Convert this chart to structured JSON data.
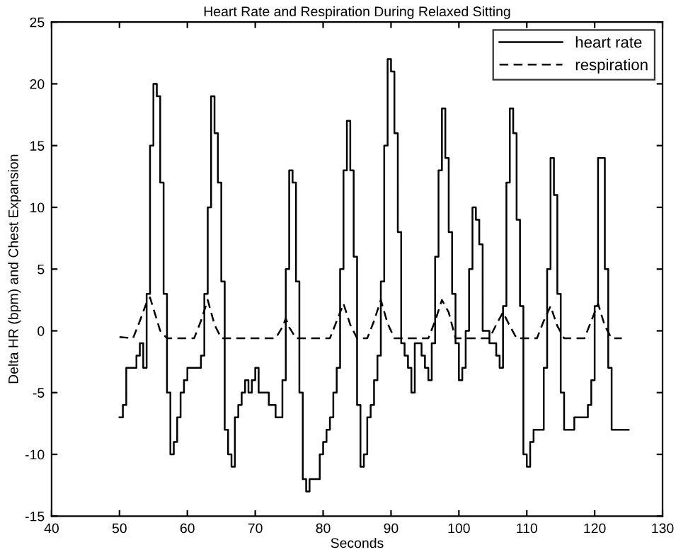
{
  "chart_data": {
    "type": "line",
    "title": "Heart Rate and Respiration During Relaxed Sitting",
    "xlabel": "Seconds",
    "ylabel": "Delta HR (bpm) and Chest Expansion",
    "xlim": [
      40,
      130
    ],
    "xticks": [
      40,
      50,
      60,
      70,
      80,
      90,
      100,
      110,
      120,
      130
    ],
    "ylim": [
      -15,
      25
    ],
    "yticks": [
      -15,
      -10,
      -5,
      0,
      5,
      10,
      15,
      20,
      25
    ],
    "grid": false,
    "legend": "top right",
    "series": [
      {
        "name": "heart rate",
        "type": "step",
        "color": "#000000",
        "line_style": "solid",
        "x": [
          50,
          50.5,
          51,
          52,
          52.5,
          53,
          53.5,
          54,
          54.5,
          55,
          55.5,
          56,
          56.5,
          57,
          57.5,
          58,
          58.5,
          59,
          59.5,
          60,
          61,
          62,
          62.5,
          63,
          63.5,
          64,
          64.5,
          65,
          65.5,
          66,
          66.5,
          67,
          67.5,
          68,
          68.5,
          69,
          69.5,
          70,
          70.5,
          71,
          72,
          73,
          74,
          74.5,
          75,
          75.5,
          76,
          76.5,
          77,
          77.5,
          78,
          79,
          79.5,
          80,
          80.5,
          81,
          81.5,
          82,
          82.5,
          83,
          83.5,
          84,
          84.5,
          85,
          85.5,
          86,
          86.5,
          87,
          87.5,
          88,
          88.5,
          89,
          89.5,
          90,
          90.5,
          91,
          91.5,
          92,
          92.5,
          93,
          93.5,
          94,
          94.5,
          95,
          95.5,
          96,
          96.5,
          97,
          97.5,
          98,
          98.5,
          99,
          99.5,
          100,
          100.5,
          101,
          101.5,
          102,
          102.5,
          103,
          103.5,
          104,
          104.5,
          105,
          105.5,
          106,
          106.5,
          107,
          107.5,
          108,
          108.5,
          109,
          109.5,
          110,
          110.5,
          111,
          112,
          112.5,
          113,
          113.5,
          114,
          114.5,
          115,
          115.5,
          116,
          117,
          118,
          119,
          119.5,
          120,
          120.5,
          121,
          121.5,
          122,
          122.5,
          123,
          125
        ],
        "values": [
          -7,
          -6,
          -3,
          -3,
          -2,
          -1,
          -3,
          3,
          15,
          20,
          19,
          12,
          3,
          -5,
          -10,
          -9,
          -7,
          -5,
          -4,
          -3,
          -3,
          -2,
          3,
          10,
          19,
          16,
          12,
          4,
          -8,
          -10,
          -11,
          -7,
          -6,
          -5,
          -4,
          -5,
          -4,
          -3,
          -5,
          -5,
          -6,
          -7,
          -4,
          5,
          13,
          12,
          4,
          -5,
          -12,
          -13,
          -12,
          -12,
          -10,
          -9,
          -8,
          -7,
          -5,
          -3,
          5,
          13,
          17,
          13,
          6,
          -6,
          -11,
          -10,
          -7,
          -6,
          -4,
          -2,
          4,
          15,
          22,
          21,
          16,
          8,
          -1,
          -2,
          -3,
          -5,
          -1,
          -1,
          -2,
          -3,
          -4,
          -1,
          6,
          13,
          18,
          14,
          8,
          3,
          -1,
          -4,
          -3,
          0,
          5,
          10,
          9,
          7,
          0,
          0,
          -1,
          -1,
          -2,
          -3,
          2,
          12,
          18,
          16,
          9,
          2,
          -10,
          -11,
          -9,
          -8,
          -8,
          -3,
          5,
          14,
          11,
          3,
          -5,
          -8,
          -8,
          -7,
          -7,
          -6,
          -4,
          2,
          14,
          14,
          5,
          -3,
          -8,
          -8,
          -8
        ]
      },
      {
        "name": "respiration",
        "color": "#000000",
        "line_style": "dashed",
        "x": [
          50,
          52,
          53,
          54,
          54.5,
          55,
          56,
          57,
          61,
          62,
          63,
          64,
          65,
          73,
          74,
          74.5,
          75,
          76,
          81,
          82,
          83,
          84,
          85,
          86.5,
          87.5,
          88.5,
          89.5,
          90.5,
          95.5,
          96.5,
          97.5,
          98.5,
          99.5,
          104.5,
          105.5,
          106.5,
          107.5,
          108.5,
          111.5,
          112.5,
          113.5,
          114.5,
          115.5,
          118.5,
          119.5,
          120.5,
          121.5,
          122.5,
          124
        ],
        "values": [
          -0.5,
          -0.6,
          0.8,
          2.3,
          2.7,
          1.8,
          0,
          -0.6,
          -0.6,
          0.8,
          2.5,
          0.5,
          -0.6,
          -0.6,
          0.3,
          1,
          0.3,
          -0.6,
          -0.6,
          0.8,
          2.2,
          0.5,
          -0.6,
          -0.6,
          0.8,
          2.5,
          0.6,
          -0.6,
          -0.6,
          0.8,
          2.5,
          1.5,
          -0.6,
          -0.6,
          0.5,
          1.5,
          0.4,
          -0.6,
          -0.6,
          0.8,
          2,
          0.4,
          -0.6,
          -0.6,
          0.8,
          2.2,
          0.4,
          -0.6,
          -0.6
        ]
      }
    ]
  }
}
